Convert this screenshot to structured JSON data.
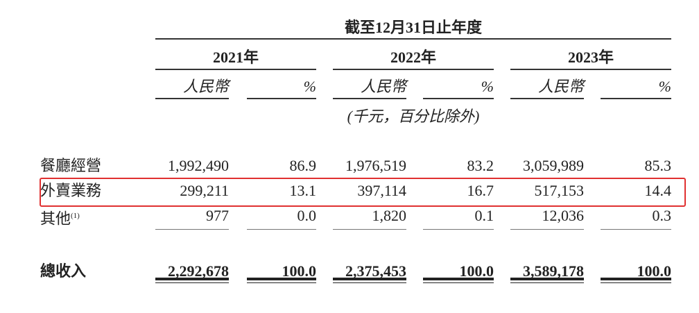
{
  "header": {
    "period_title": "截至12月31日止年度",
    "years": [
      "2021年",
      "2022年",
      "2023年"
    ],
    "currency_label": "人民幣",
    "percent_label": "%",
    "unit_note": "(千元，百分比除外)"
  },
  "rows": [
    {
      "label": "餐廳經營",
      "footnote": "",
      "values": [
        "1,992,490",
        "86.9",
        "1,976,519",
        "83.2",
        "3,059,989",
        "85.3"
      ]
    },
    {
      "label": "外賣業務",
      "footnote": "",
      "values": [
        "299,211",
        "13.1",
        "397,114",
        "16.7",
        "517,153",
        "14.4"
      ],
      "highlighted": true
    },
    {
      "label": "其他",
      "footnote": "(1)",
      "values": [
        "977",
        "0.0",
        "1,820",
        "0.1",
        "12,036",
        "0.3"
      ]
    }
  ],
  "total": {
    "label": "總收入",
    "values": [
      "2,292,678",
      "100.0",
      "2,375,453",
      "100.0",
      "3,589,178",
      "100.0"
    ]
  },
  "highlight_color": "#e03030"
}
